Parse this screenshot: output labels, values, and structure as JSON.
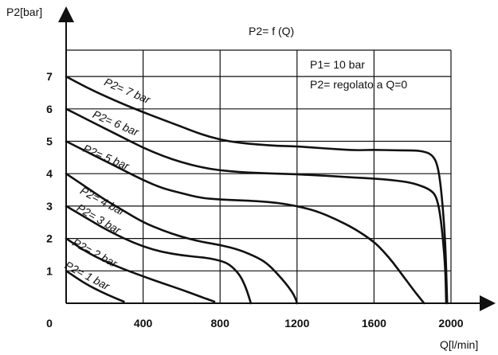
{
  "chart_data": {
    "type": "line",
    "title": "P2= f (Q)",
    "xlabel": "Q[l/min]",
    "ylabel": "P2[bar]",
    "xlim": [
      0,
      2000
    ],
    "ylim": [
      0,
      7
    ],
    "xticks": [
      0,
      400,
      800,
      1200,
      1600,
      2000
    ],
    "yticks": [
      1,
      2,
      3,
      4,
      5,
      6,
      7
    ],
    "grid": true,
    "annotations": [
      "P1= 10 bar",
      "P2= regolato a Q=0"
    ],
    "series": [
      {
        "name": "P2= 7 bar",
        "x": [
          0,
          100,
          200,
          300,
          400,
          500,
          600,
          700,
          800,
          900,
          1000,
          1100,
          1200,
          1300,
          1400,
          1500,
          1600,
          1700,
          1800,
          1850,
          1900,
          1930,
          1950,
          1970,
          1980
        ],
        "y": [
          7.0,
          6.68,
          6.4,
          6.14,
          5.9,
          5.67,
          5.45,
          5.22,
          5.05,
          4.95,
          4.9,
          4.86,
          4.84,
          4.8,
          4.76,
          4.72,
          4.74,
          4.72,
          4.72,
          4.7,
          4.6,
          4.3,
          3.5,
          2.0,
          0.0
        ]
      },
      {
        "name": "P2= 6 bar",
        "x": [
          0,
          100,
          200,
          300,
          400,
          500,
          600,
          700,
          800,
          900,
          1000,
          1100,
          1200,
          1300,
          1400,
          1500,
          1600,
          1700,
          1800,
          1900,
          1930,
          1950,
          1970,
          1975
        ],
        "y": [
          6.0,
          5.7,
          5.4,
          5.1,
          4.8,
          4.55,
          4.35,
          4.2,
          4.1,
          4.05,
          4.02,
          4.0,
          3.98,
          3.95,
          3.92,
          3.88,
          3.85,
          3.8,
          3.72,
          3.5,
          3.2,
          2.5,
          1.2,
          0.0
        ]
      },
      {
        "name": "P2= 5 bar",
        "x": [
          0,
          100,
          200,
          300,
          400,
          500,
          600,
          700,
          800,
          900,
          1000,
          1100,
          1200,
          1300,
          1400,
          1500,
          1600,
          1650,
          1700,
          1750,
          1800,
          1840,
          1860
        ],
        "y": [
          5.0,
          4.7,
          4.4,
          4.1,
          3.8,
          3.55,
          3.4,
          3.25,
          3.2,
          3.18,
          3.15,
          3.1,
          3.0,
          2.85,
          2.6,
          2.3,
          1.9,
          1.6,
          1.25,
          0.85,
          0.45,
          0.15,
          0.0
        ]
      },
      {
        "name": "P2= 4 bar",
        "x": [
          0,
          100,
          200,
          300,
          400,
          500,
          600,
          700,
          800,
          900,
          1000,
          1050,
          1100,
          1150,
          1180,
          1195,
          1200
        ],
        "y": [
          4.0,
          3.6,
          3.2,
          2.85,
          2.5,
          2.25,
          2.05,
          1.9,
          1.8,
          1.65,
          1.4,
          1.2,
          0.9,
          0.55,
          0.3,
          0.1,
          0.0
        ]
      },
      {
        "name": "P2= 3 bar",
        "x": [
          0,
          100,
          200,
          300,
          400,
          500,
          600,
          700,
          750,
          800,
          850,
          900,
          930,
          950,
          960
        ],
        "y": [
          3.0,
          2.65,
          2.3,
          2.0,
          1.75,
          1.58,
          1.48,
          1.42,
          1.38,
          1.32,
          1.2,
          0.9,
          0.55,
          0.2,
          0.0
        ]
      },
      {
        "name": "P2= 2 bar",
        "x": [
          0,
          100,
          200,
          300,
          400,
          500,
          600,
          700,
          770
        ],
        "y": [
          2.0,
          1.6,
          1.3,
          1.05,
          0.83,
          0.62,
          0.42,
          0.2,
          0.05
        ]
      },
      {
        "name": "P2= 1 bar",
        "x": [
          0,
          100,
          200,
          300
        ],
        "y": [
          1.0,
          0.6,
          0.3,
          0.05
        ]
      }
    ],
    "series_labels": [
      {
        "text": "P2= 7 bar",
        "x": 310,
        "y": 6.45,
        "angle": 23
      },
      {
        "text": "P2= 6 bar",
        "x": 250,
        "y": 5.45,
        "angle": 23
      },
      {
        "text": "P2= 5 bar",
        "x": 200,
        "y": 4.4,
        "angle": 23
      },
      {
        "text": "P2= 4 bar",
        "x": 180,
        "y": 3.05,
        "angle": 28
      },
      {
        "text": "P2= 3 bar",
        "x": 160,
        "y": 2.5,
        "angle": 30
      },
      {
        "text": "P2= 2 bar",
        "x": 140,
        "y": 1.45,
        "angle": 28
      },
      {
        "text": "P2= 1 bar",
        "x": 100,
        "y": 0.75,
        "angle": 28
      }
    ]
  }
}
